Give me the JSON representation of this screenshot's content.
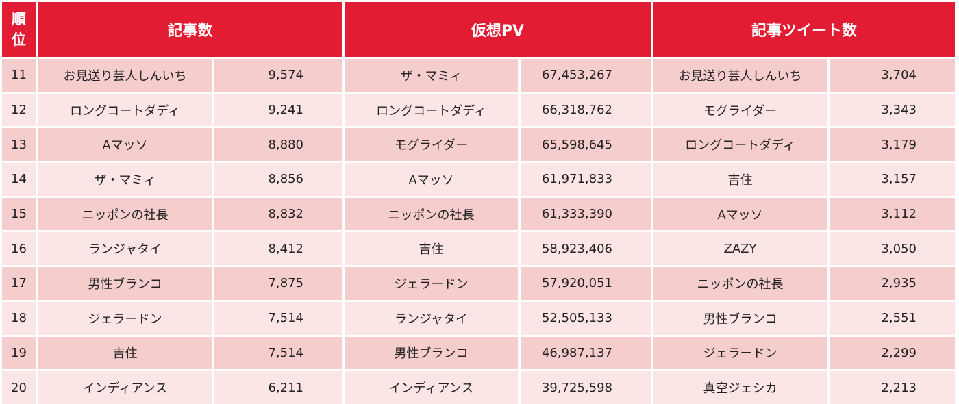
{
  "header": {
    "rank_top": "順",
    "rank_bottom": "位",
    "col1": "記事数",
    "col2": "仮想PV",
    "col3": "記事ツイート数"
  },
  "rows": [
    {
      "rank": "11",
      "a_name": "お見送り芸人しんいち",
      "a_val": "9,574",
      "b_name": "ザ・マミィ",
      "b_val": "67,453,267",
      "c_name": "お見送り芸人しんいち",
      "c_val": "3,704"
    },
    {
      "rank": "12",
      "a_name": "ロングコートダディ",
      "a_val": "9,241",
      "b_name": "ロングコートダディ",
      "b_val": "66,318,762",
      "c_name": "モグライダー",
      "c_val": "3,343"
    },
    {
      "rank": "13",
      "a_name": "Aマッソ",
      "a_val": "8,880",
      "b_name": "モグライダー",
      "b_val": "65,598,645",
      "c_name": "ロングコートダディ",
      "c_val": "3,179"
    },
    {
      "rank": "14",
      "a_name": "ザ・マミィ",
      "a_val": "8,856",
      "b_name": "Aマッソ",
      "b_val": "61,971,833",
      "c_name": "吉住",
      "c_val": "3,157"
    },
    {
      "rank": "15",
      "a_name": "ニッポンの社長",
      "a_val": "8,832",
      "b_name": "ニッポンの社長",
      "b_val": "61,333,390",
      "c_name": "Aマッソ",
      "c_val": "3,112"
    },
    {
      "rank": "16",
      "a_name": "ランジャタイ",
      "a_val": "8,412",
      "b_name": "吉住",
      "b_val": "58,923,406",
      "c_name": "ZAZY",
      "c_val": "3,050"
    },
    {
      "rank": "17",
      "a_name": "男性ブランコ",
      "a_val": "7,875",
      "b_name": "ジェラードン",
      "b_val": "57,920,051",
      "c_name": "ニッポンの社長",
      "c_val": "2,935"
    },
    {
      "rank": "18",
      "a_name": "ジェラードン",
      "a_val": "7,514",
      "b_name": "ランジャタイ",
      "b_val": "52,505,133",
      "c_name": "男性ブランコ",
      "c_val": "2,551"
    },
    {
      "rank": "19",
      "a_name": "吉住",
      "a_val": "7,514",
      "b_name": "男性ブランコ",
      "b_val": "46,987,137",
      "c_name": "ジェラードン",
      "c_val": "2,299"
    },
    {
      "rank": "20",
      "a_name": "インディアンス",
      "a_val": "6,211",
      "b_name": "インディアンス",
      "b_val": "39,725,598",
      "c_name": "真空ジェシカ",
      "c_val": "2,213"
    }
  ],
  "colors": {
    "header_bg": "#e21d33",
    "row_odd_bg": "#f5cdcc",
    "row_even_bg": "#fbe6e5"
  }
}
